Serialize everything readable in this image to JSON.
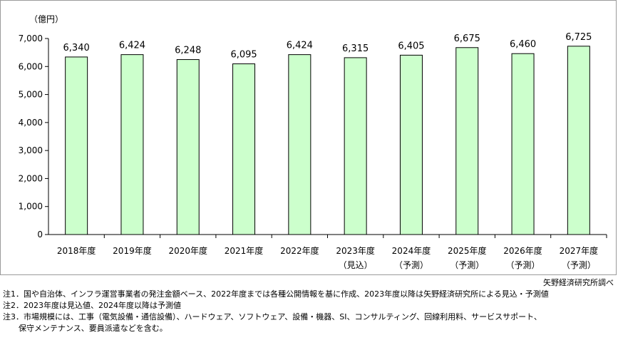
{
  "chart_data": {
    "type": "bar",
    "unit_label": "（億円）",
    "categories": [
      "2018年度",
      "2019年度",
      "2020年度",
      "2021年度",
      "2022年度",
      "2023年度",
      "2024年度",
      "2025年度",
      "2026年度",
      "2027年度"
    ],
    "sublabels": [
      "",
      "",
      "",
      "",
      "",
      "（見込）",
      "（予測）",
      "（予測）",
      "（予測）",
      "（予測）"
    ],
    "values": [
      6340,
      6424,
      6248,
      6095,
      6424,
      6315,
      6405,
      6675,
      6460,
      6725
    ],
    "value_labels": [
      "6,340",
      "6,424",
      "6,248",
      "6,095",
      "6,424",
      "6,315",
      "6,405",
      "6,675",
      "6,460",
      "6,725"
    ],
    "yticks": [
      0,
      1000,
      2000,
      3000,
      4000,
      5000,
      6000,
      7000
    ],
    "ytick_labels": [
      "0",
      "1,000",
      "2,000",
      "3,000",
      "4,000",
      "5,000",
      "6,000",
      "7,000"
    ],
    "ylim": [
      0,
      7000
    ],
    "grid": false,
    "bar_fill": "#ccffcc",
    "bar_stroke": "#000000"
  },
  "source": "矢野経済研究所調べ",
  "notes": {
    "note1_line1": "注1．国や自治体、インフラ運営事業者の発注金額ベース、2022年度までは各種公開情報を基に作成、2023年度以降は矢野経済研究所による見込・予測値",
    "note2": "注2．2023年度は見込値、2024年度以降は予測値",
    "note3_line1": "注3．市場規模には、工事（電気設備・通信設備）、ハードウェア、ソフトウェア、設備・機器、SI、コンサルティング、回線利用料、サービスサポート、",
    "note3_line2": "保守メンテナンス、要員派遣などを含む。"
  }
}
